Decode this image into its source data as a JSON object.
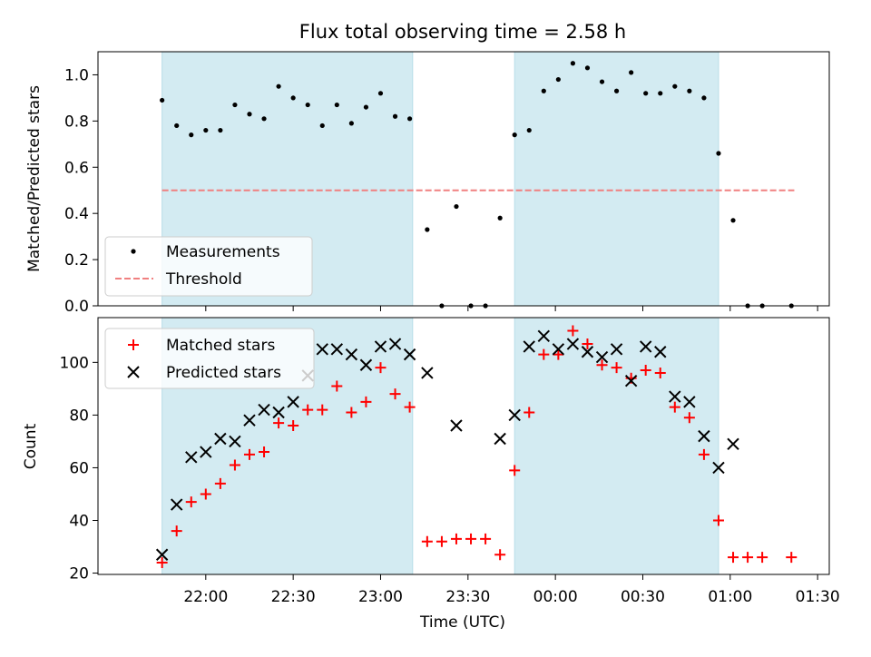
{
  "chart_data": [
    {
      "type": "scatter",
      "title": "Flux total observing time = 2.58 h",
      "ylabel": "Matched/Predicted stars",
      "xlabel": "",
      "ylim": [
        0,
        1.1
      ],
      "yticks": [
        "0.0",
        "0.2",
        "0.4",
        "0.6",
        "0.8",
        "1.0"
      ],
      "grid": false,
      "legend_position": "lower-left",
      "highlight_bands": [
        [
          "21:45",
          "23:11"
        ],
        [
          "23:46",
          "00:56"
        ]
      ],
      "highlight_color": "#d3ebf2",
      "threshold_range": [
        "21:45",
        "01:22"
      ],
      "series": [
        {
          "name": "Measurements",
          "marker": "dot",
          "color": "#000000",
          "points": [
            [
              "21:45",
              0.89
            ],
            [
              "21:50",
              0.78
            ],
            [
              "21:55",
              0.74
            ],
            [
              "22:00",
              0.76
            ],
            [
              "22:05",
              0.76
            ],
            [
              "22:10",
              0.87
            ],
            [
              "22:15",
              0.83
            ],
            [
              "22:20",
              0.81
            ],
            [
              "22:25",
              0.95
            ],
            [
              "22:30",
              0.9
            ],
            [
              "22:35",
              0.87
            ],
            [
              "22:40",
              0.78
            ],
            [
              "22:45",
              0.87
            ],
            [
              "22:50",
              0.79
            ],
            [
              "22:55",
              0.86
            ],
            [
              "23:00",
              0.92
            ],
            [
              "23:05",
              0.82
            ],
            [
              "23:10",
              0.81
            ],
            [
              "23:16",
              0.33
            ],
            [
              "23:21",
              0.0
            ],
            [
              "23:26",
              0.43
            ],
            [
              "23:31",
              0.0
            ],
            [
              "23:36",
              0.0
            ],
            [
              "23:41",
              0.38
            ],
            [
              "23:46",
              0.74
            ],
            [
              "23:51",
              0.76
            ],
            [
              "23:56",
              0.93
            ],
            [
              "00:01",
              0.98
            ],
            [
              "00:06",
              1.05
            ],
            [
              "00:11",
              1.03
            ],
            [
              "00:16",
              0.97
            ],
            [
              "00:21",
              0.93
            ],
            [
              "00:26",
              1.01
            ],
            [
              "00:31",
              0.92
            ],
            [
              "00:36",
              0.92
            ],
            [
              "00:41",
              0.95
            ],
            [
              "00:46",
              0.93
            ],
            [
              "00:51",
              0.9
            ],
            [
              "00:56",
              0.66
            ],
            [
              "01:01",
              0.37
            ],
            [
              "01:06",
              0.0
            ],
            [
              "01:11",
              0.0
            ],
            [
              "01:21",
              0.0
            ]
          ]
        },
        {
          "name": "Threshold",
          "style": "dashed",
          "color": "#f08080",
          "value": 0.5
        }
      ]
    },
    {
      "type": "scatter",
      "title": "",
      "xlabel": "Time (UTC)",
      "ylabel": "Count",
      "ylim": [
        19.5,
        117
      ],
      "yticks": [
        "20",
        "40",
        "60",
        "80",
        "100"
      ],
      "xticks": [
        "22:00",
        "22:30",
        "23:00",
        "23:30",
        "00:00",
        "00:30",
        "01:00",
        "01:30"
      ],
      "grid": false,
      "legend_position": "upper-left",
      "series": [
        {
          "name": "Matched stars",
          "marker": "plus",
          "color": "#ff0000",
          "points": [
            [
              "21:45",
              24
            ],
            [
              "21:50",
              36
            ],
            [
              "21:55",
              47
            ],
            [
              "22:00",
              50
            ],
            [
              "22:05",
              54
            ],
            [
              "22:10",
              61
            ],
            [
              "22:15",
              65
            ],
            [
              "22:20",
              66
            ],
            [
              "22:25",
              77
            ],
            [
              "22:30",
              76
            ],
            [
              "22:35",
              82
            ],
            [
              "22:40",
              82
            ],
            [
              "22:45",
              91
            ],
            [
              "22:50",
              81
            ],
            [
              "22:55",
              85
            ],
            [
              "23:00",
              98
            ],
            [
              "23:05",
              88
            ],
            [
              "23:10",
              83
            ],
            [
              "23:16",
              32
            ],
            [
              "23:21",
              32
            ],
            [
              "23:26",
              33
            ],
            [
              "23:31",
              33
            ],
            [
              "23:36",
              33
            ],
            [
              "23:41",
              27
            ],
            [
              "23:46",
              59
            ],
            [
              "23:51",
              81
            ],
            [
              "23:56",
              103
            ],
            [
              "00:01",
              103
            ],
            [
              "00:06",
              112
            ],
            [
              "00:11",
              107
            ],
            [
              "00:16",
              99
            ],
            [
              "00:21",
              98
            ],
            [
              "00:26",
              94
            ],
            [
              "00:31",
              97
            ],
            [
              "00:36",
              96
            ],
            [
              "00:41",
              83
            ],
            [
              "00:46",
              79
            ],
            [
              "00:51",
              65
            ],
            [
              "00:56",
              40
            ],
            [
              "01:01",
              26
            ],
            [
              "01:06",
              26
            ],
            [
              "01:11",
              26
            ],
            [
              "01:21",
              26
            ]
          ]
        },
        {
          "name": "Predicted stars",
          "marker": "x",
          "color": "#000000",
          "points": [
            [
              "21:45",
              27
            ],
            [
              "21:50",
              46
            ],
            [
              "21:55",
              64
            ],
            [
              "22:00",
              66
            ],
            [
              "22:05",
              71
            ],
            [
              "22:10",
              70
            ],
            [
              "22:15",
              78
            ],
            [
              "22:20",
              82
            ],
            [
              "22:25",
              81
            ],
            [
              "22:30",
              85
            ],
            [
              "22:35",
              95
            ],
            [
              "22:40",
              105
            ],
            [
              "22:45",
              105
            ],
            [
              "22:50",
              103
            ],
            [
              "22:55",
              99
            ],
            [
              "23:00",
              106
            ],
            [
              "23:05",
              107
            ],
            [
              "23:10",
              103
            ],
            [
              "23:16",
              96
            ],
            [
              "23:26",
              76
            ],
            [
              "23:41",
              71
            ],
            [
              "23:46",
              80
            ],
            [
              "23:51",
              106
            ],
            [
              "23:56",
              110
            ],
            [
              "00:01",
              105
            ],
            [
              "00:06",
              107
            ],
            [
              "00:11",
              104
            ],
            [
              "00:16",
              102
            ],
            [
              "00:21",
              105
            ],
            [
              "00:26",
              93
            ],
            [
              "00:31",
              106
            ],
            [
              "00:36",
              104
            ],
            [
              "00:41",
              87
            ],
            [
              "00:46",
              85
            ],
            [
              "00:51",
              72
            ],
            [
              "00:56",
              60
            ],
            [
              "01:01",
              69
            ]
          ]
        }
      ]
    }
  ]
}
